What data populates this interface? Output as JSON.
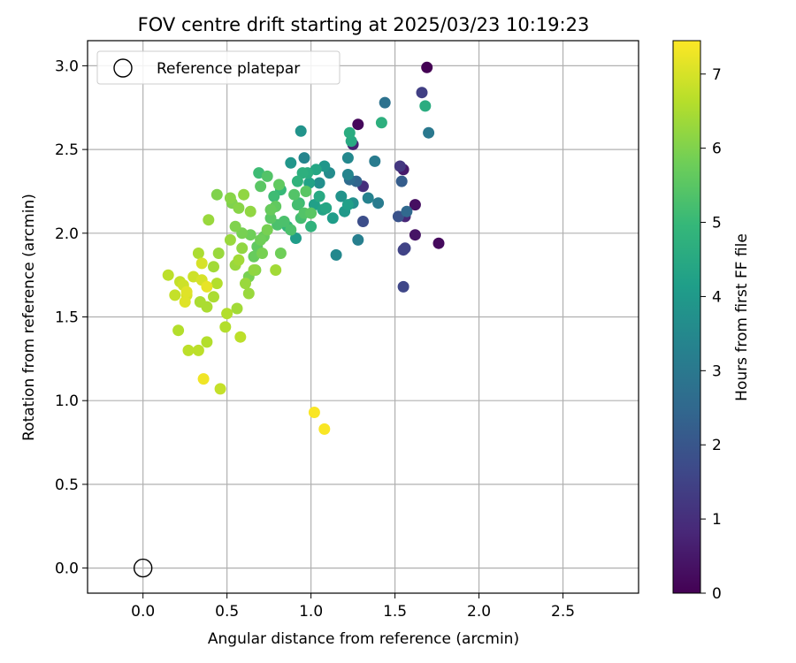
{
  "chart_data": {
    "type": "scatter",
    "title": "FOV centre drift starting at 2025/03/23 10:19:23",
    "xlabel": "Angular distance from reference (arcmin)",
    "ylabel": "Rotation from reference (arcmin)",
    "xlim": [
      -0.33,
      2.95
    ],
    "ylim": [
      -0.15,
      3.15
    ],
    "xticks": [
      0.0,
      0.5,
      1.0,
      1.5,
      2.0,
      2.5
    ],
    "yticks": [
      0.0,
      0.5,
      1.0,
      1.5,
      2.0,
      2.5,
      3.0
    ],
    "xtick_labels": [
      "0.0",
      "0.5",
      "1.0",
      "1.5",
      "2.0",
      "2.5"
    ],
    "ytick_labels": [
      "0.0",
      "0.5",
      "1.0",
      "1.5",
      "2.0",
      "2.5",
      "3.0"
    ],
    "grid": true,
    "legend": {
      "position": "top-left",
      "entries": [
        {
          "label": "Reference platepar",
          "marker": "open-circle"
        }
      ]
    },
    "reference_point": {
      "x": 0.0,
      "y": 0.0
    },
    "colorbar": {
      "label": "Hours from first FF file",
      "colormap": "viridis",
      "range": [
        0,
        7.45
      ],
      "ticks": [
        0,
        1,
        2,
        3,
        4,
        5,
        6,
        7
      ],
      "tick_labels": [
        "0",
        "1",
        "2",
        "3",
        "4",
        "5",
        "6",
        "7"
      ]
    },
    "colormap_stops": [
      "#440154",
      "#482878",
      "#3e4989",
      "#31688e",
      "#26828e",
      "#1f9e89",
      "#35b779",
      "#6ece58",
      "#b5de2b",
      "#fde725"
    ],
    "series": [
      {
        "points": [
          [
            1.69,
            2.99,
            0.0
          ],
          [
            1.28,
            2.65,
            0.15
          ],
          [
            1.76,
            1.94,
            0.2
          ],
          [
            1.62,
            2.17,
            0.3
          ],
          [
            1.62,
            1.99,
            0.4
          ],
          [
            1.55,
            2.38,
            0.5
          ],
          [
            1.25,
            2.53,
            0.7
          ],
          [
            1.56,
            2.1,
            0.8
          ],
          [
            1.31,
            2.28,
            1.0
          ],
          [
            1.53,
            2.4,
            1.2
          ],
          [
            1.66,
            2.84,
            1.4
          ],
          [
            1.55,
            1.9,
            1.5
          ],
          [
            1.55,
            1.68,
            1.6
          ],
          [
            1.56,
            1.91,
            1.5
          ],
          [
            1.31,
            2.07,
            1.8
          ],
          [
            1.52,
            2.1,
            1.9
          ],
          [
            1.54,
            2.31,
            2.2
          ],
          [
            1.57,
            2.13,
            2.5
          ],
          [
            1.27,
            2.31,
            2.4
          ],
          [
            1.23,
            2.32,
            2.6
          ],
          [
            1.44,
            2.78,
            2.8
          ],
          [
            1.7,
            2.6,
            3.0
          ],
          [
            1.38,
            2.43,
            3.1
          ],
          [
            1.4,
            2.18,
            3.1
          ],
          [
            1.28,
            1.96,
            3.2
          ],
          [
            1.34,
            2.21,
            3.3
          ],
          [
            1.22,
            2.35,
            3.4
          ],
          [
            1.15,
            1.87,
            3.5
          ],
          [
            0.96,
            2.45,
            3.4
          ],
          [
            1.22,
            2.45,
            3.5
          ],
          [
            1.11,
            2.36,
            3.6
          ],
          [
            1.05,
            2.3,
            3.7
          ],
          [
            1.25,
            2.18,
            3.7
          ],
          [
            0.94,
            2.61,
            3.8
          ],
          [
            0.88,
            2.42,
            3.9
          ],
          [
            1.08,
            2.4,
            3.9
          ],
          [
            1.2,
            2.13,
            4.0
          ],
          [
            1.13,
            2.09,
            4.1
          ],
          [
            1.22,
            2.17,
            4.2
          ],
          [
            0.91,
            1.97,
            4.1
          ],
          [
            1.02,
            2.17,
            4.2
          ],
          [
            1.07,
            2.14,
            4.3
          ],
          [
            0.99,
            2.3,
            4.3
          ],
          [
            1.03,
            2.38,
            4.4
          ],
          [
            1.24,
            2.55,
            4.5
          ],
          [
            1.23,
            2.6,
            4.6
          ],
          [
            1.68,
            2.76,
            4.6
          ],
          [
            1.42,
            2.66,
            4.7
          ],
          [
            0.95,
            2.36,
            4.7
          ],
          [
            0.92,
            2.31,
            4.8
          ],
          [
            1.0,
            2.04,
            4.8
          ],
          [
            0.86,
            2.04,
            4.9
          ],
          [
            0.82,
            2.26,
            5.0
          ],
          [
            0.78,
            2.22,
            5.1
          ],
          [
            0.69,
            2.36,
            5.1
          ],
          [
            0.92,
            2.17,
            5.2
          ],
          [
            0.94,
            2.09,
            5.2
          ],
          [
            0.8,
            2.05,
            5.3
          ],
          [
            0.84,
            2.07,
            5.3
          ],
          [
            0.9,
            2.23,
            5.4
          ],
          [
            0.74,
            2.34,
            5.4
          ],
          [
            0.7,
            2.28,
            5.5
          ],
          [
            0.96,
            2.12,
            5.4
          ],
          [
            1.0,
            2.12,
            5.5
          ],
          [
            0.81,
            2.29,
            5.6
          ],
          [
            0.79,
            2.16,
            5.6
          ],
          [
            0.76,
            2.14,
            5.7
          ],
          [
            0.66,
            1.86,
            5.7
          ],
          [
            0.64,
            1.99,
            5.8
          ],
          [
            0.7,
            1.96,
            5.8
          ],
          [
            0.74,
            2.02,
            5.9
          ],
          [
            0.63,
            1.74,
            5.9
          ],
          [
            0.59,
            2.0,
            5.9
          ],
          [
            0.53,
            2.18,
            6.0
          ],
          [
            0.55,
            2.04,
            6.0
          ],
          [
            0.44,
            2.23,
            6.0
          ],
          [
            0.52,
            2.21,
            6.1
          ],
          [
            0.57,
            2.15,
            6.1
          ],
          [
            0.67,
            1.78,
            6.1
          ],
          [
            0.6,
            2.23,
            6.2
          ],
          [
            0.64,
            2.13,
            6.2
          ],
          [
            0.59,
            1.91,
            6.2
          ],
          [
            0.52,
            1.96,
            6.3
          ],
          [
            0.39,
            2.08,
            6.3
          ],
          [
            0.45,
            1.88,
            6.3
          ],
          [
            0.55,
            1.81,
            6.3
          ],
          [
            0.63,
            1.64,
            6.3
          ],
          [
            0.79,
            1.78,
            6.4
          ],
          [
            0.56,
            1.55,
            6.4
          ],
          [
            0.42,
            1.8,
            6.4
          ],
          [
            0.33,
            1.88,
            6.5
          ],
          [
            0.42,
            1.62,
            6.5
          ],
          [
            0.38,
            1.56,
            6.5
          ],
          [
            0.34,
            1.59,
            6.5
          ],
          [
            0.44,
            1.7,
            6.6
          ],
          [
            0.5,
            1.52,
            6.6
          ],
          [
            0.49,
            1.44,
            6.6
          ],
          [
            0.38,
            1.35,
            6.6
          ],
          [
            0.21,
            1.42,
            6.6
          ],
          [
            0.27,
            1.3,
            6.7
          ],
          [
            0.33,
            1.3,
            6.7
          ],
          [
            0.58,
            1.38,
            6.7
          ],
          [
            0.46,
            1.07,
            6.8
          ],
          [
            0.15,
            1.75,
            6.7
          ],
          [
            0.22,
            1.71,
            6.8
          ],
          [
            0.19,
            1.63,
            6.8
          ],
          [
            0.24,
            1.69,
            6.9
          ],
          [
            0.3,
            1.74,
            6.9
          ],
          [
            0.35,
            1.72,
            7.0
          ],
          [
            0.35,
            1.82,
            7.0
          ],
          [
            0.26,
            1.63,
            7.0
          ],
          [
            0.25,
            1.59,
            7.1
          ],
          [
            0.26,
            1.65,
            7.1
          ],
          [
            0.38,
            1.68,
            7.2
          ],
          [
            0.36,
            1.13,
            7.3
          ],
          [
            1.02,
            0.93,
            7.4
          ],
          [
            1.08,
            0.83,
            7.4
          ],
          [
            0.68,
            1.92,
            5.6
          ],
          [
            0.72,
            1.98,
            5.7
          ],
          [
            0.82,
            1.88,
            5.8
          ],
          [
            0.71,
            1.88,
            5.9
          ],
          [
            0.88,
            2.02,
            5.3
          ],
          [
            0.93,
            2.18,
            5.1
          ],
          [
            0.97,
            2.25,
            5.5
          ],
          [
            1.05,
            2.22,
            4.5
          ],
          [
            1.09,
            2.15,
            4.4
          ],
          [
            1.18,
            2.22,
            3.8
          ],
          [
            0.98,
            2.36,
            4.6
          ],
          [
            0.84,
            2.06,
            4.9
          ],
          [
            0.76,
            2.09,
            5.5
          ],
          [
            0.66,
            1.78,
            6.2
          ],
          [
            0.61,
            1.7,
            6.3
          ],
          [
            0.57,
            1.84,
            6.4
          ]
        ]
      }
    ]
  }
}
